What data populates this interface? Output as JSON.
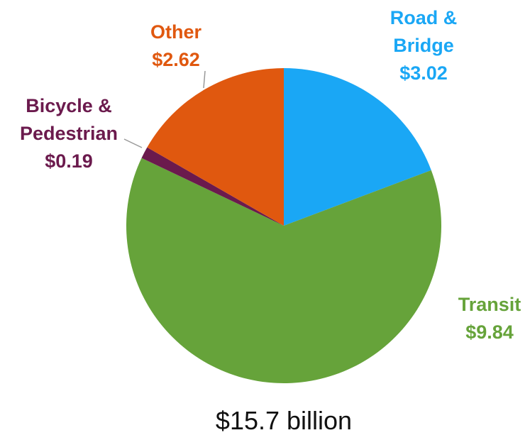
{
  "chart_data": {
    "type": "pie",
    "categories": [
      "Road & Bridge",
      "Transit",
      "Bicycle & Pedestrian",
      "Other"
    ],
    "values": [
      3.02,
      9.84,
      0.19,
      2.62
    ],
    "value_labels": [
      "$3.02",
      "$9.84",
      "$0.19",
      "$2.62"
    ],
    "colors": [
      "#1aa7f5",
      "#66a33a",
      "#6b1a4d",
      "#e0580f"
    ],
    "annotation": "$15.7 billion"
  }
}
